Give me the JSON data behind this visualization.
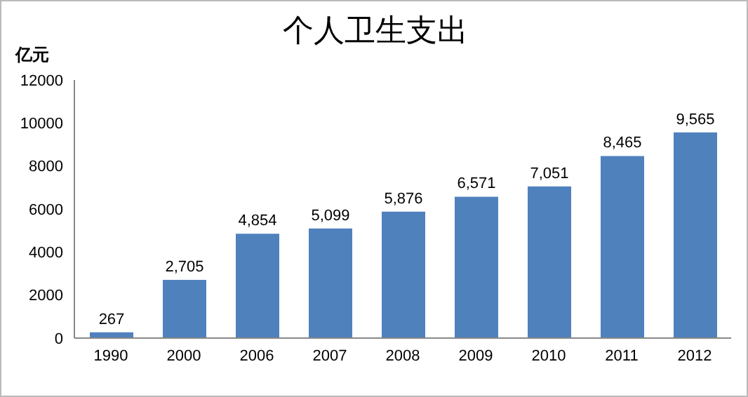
{
  "chart_data": {
    "type": "bar",
    "title": "个人卫生支出",
    "ylabel": "亿元",
    "categories": [
      "1990",
      "2000",
      "2006",
      "2007",
      "2008",
      "2009",
      "2010",
      "2011",
      "2012"
    ],
    "values": [
      267,
      2705,
      4854,
      5099,
      5876,
      6571,
      7051,
      8465,
      9565
    ],
    "value_labels": [
      "267",
      "2,705",
      "4,854",
      "5,099",
      "5,876",
      "6,571",
      "7,051",
      "8,465",
      "9,565"
    ],
    "color": "#4f81bd",
    "ylim": [
      0,
      12000
    ],
    "yticks": [
      0,
      2000,
      4000,
      6000,
      8000,
      10000,
      12000
    ],
    "grid": false
  }
}
